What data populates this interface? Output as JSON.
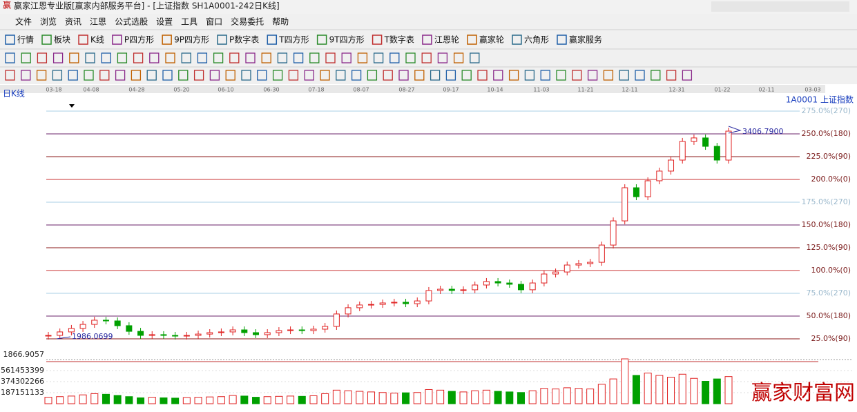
{
  "window": {
    "title": "赢家江恩专业版[赢家内部服务平台] - [上证指数  SH1A0001-242日K线]"
  },
  "menu": [
    "文件",
    "浏览",
    "资讯",
    "江恩",
    "公式选股",
    "设置",
    "工具",
    "窗口",
    "交易委托",
    "帮助"
  ],
  "toolbar": [
    "行情",
    "板块",
    "K线",
    "P四方形",
    "9P四方形",
    "P数字表",
    "T四方形",
    "9T四方形",
    "T数字表",
    "江恩轮",
    "赢家轮",
    "六角形",
    "赢家服务"
  ],
  "chart": {
    "period_label": "日K线",
    "symbol": "1A0001  上证指数",
    "dates": [
      "03-18",
      "04-08",
      "04-28",
      "05-20",
      "06-10",
      "06-30",
      "07-18",
      "08-07",
      "08-27",
      "09-17",
      "10-14",
      "11-03",
      "11-21",
      "12-11",
      "12-31",
      "01-22",
      "02-11",
      "03-03"
    ],
    "gann_levels": [
      {
        "value": 275,
        "label": "275.0%(270)"
      },
      {
        "value": 250,
        "label": "250.0%(180)"
      },
      {
        "value": 225,
        "label": "225.0%(90)"
      },
      {
        "value": 200,
        "label": "200.0%(0)"
      },
      {
        "value": 175,
        "label": "175.0%(270)"
      },
      {
        "value": 150,
        "label": "150.0%(180)"
      },
      {
        "value": 125,
        "label": "125.0%(90)"
      },
      {
        "value": 100,
        "label": "100.0%(0)"
      },
      {
        "value": 75,
        "label": "75.0%(270)"
      },
      {
        "value": 50,
        "label": "50.0%(180)"
      },
      {
        "value": 25,
        "label": "25.0%(90)"
      }
    ],
    "low_label": 1986.0699,
    "high_label": {
      "value": 3406.79,
      "label": "3406.7900"
    },
    "close": [
      2010,
      2034,
      2058,
      2086,
      2115,
      2110,
      2077,
      2038,
      2010,
      2015,
      2010,
      2005,
      2010,
      2019,
      2029,
      2034,
      2048,
      2029,
      2015,
      2029,
      2043,
      2048,
      2043,
      2053,
      2072,
      2158,
      2201,
      2220,
      2224,
      2234,
      2239,
      2229,
      2248,
      2320,
      2329,
      2320,
      2325,
      2358,
      2382,
      2372,
      2363,
      2325,
      2372,
      2434,
      2448,
      2496,
      2506,
      2515,
      2634,
      2801,
      3030,
      2968,
      3078,
      3145,
      3221,
      3350,
      3374,
      3316,
      3221,
      3421
    ],
    "volume_top_label": "1866.9057",
    "volume_ticks": [
      561453399,
      374302266,
      187151133
    ],
    "volume": [
      110000000,
      120000000,
      130000000,
      150000000,
      170000000,
      160000000,
      140000000,
      120000000,
      100000000,
      110000000,
      100000000,
      95000000,
      105000000,
      110000000,
      115000000,
      120000000,
      140000000,
      130000000,
      110000000,
      120000000,
      125000000,
      130000000,
      125000000,
      135000000,
      170000000,
      230000000,
      220000000,
      210000000,
      200000000,
      190000000,
      180000000,
      185000000,
      190000000,
      240000000,
      230000000,
      210000000,
      200000000,
      220000000,
      230000000,
      210000000,
      200000000,
      190000000,
      220000000,
      260000000,
      250000000,
      270000000,
      260000000,
      250000000,
      330000000,
      420000000,
      760000000,
      480000000,
      520000000,
      480000000,
      450000000,
      500000000,
      430000000,
      380000000,
      420000000,
      460000000
    ]
  },
  "watermark": "赢家财富网"
}
